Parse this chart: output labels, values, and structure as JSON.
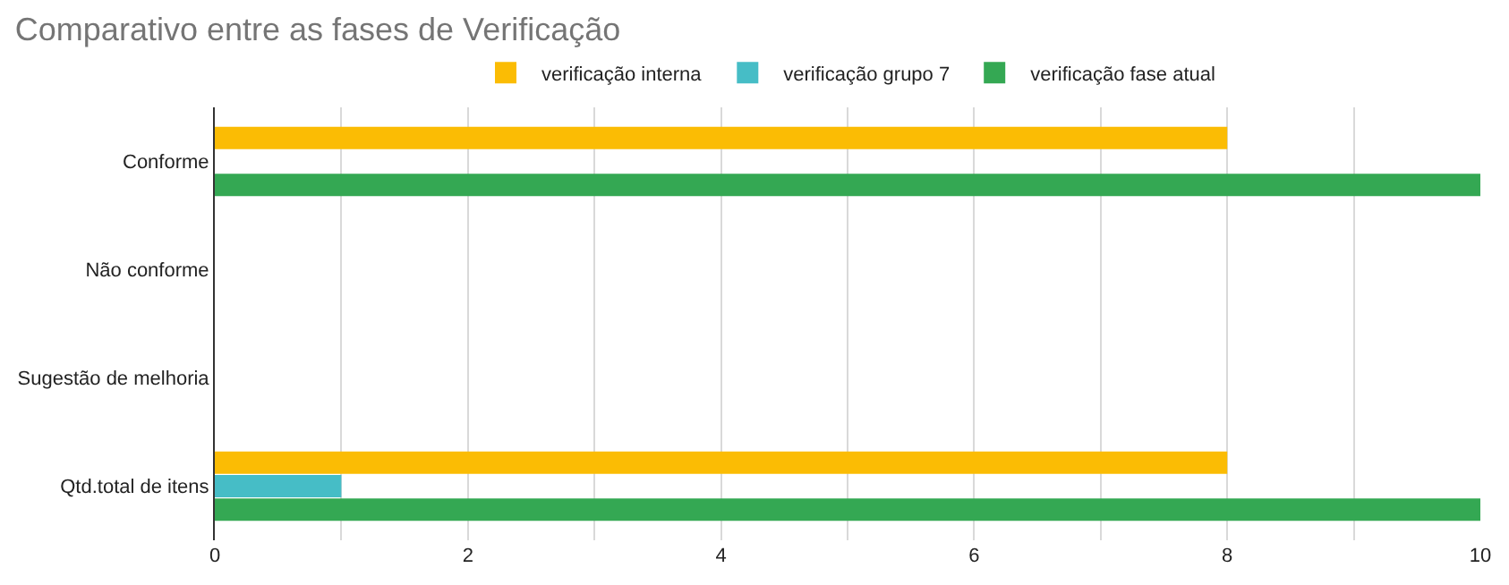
{
  "chart_data": {
    "type": "bar",
    "orientation": "horizontal",
    "title": "Comparativo entre as fases de Verificação",
    "categories": [
      "Conforme",
      "Não conforme",
      "Sugestão de melhoria",
      "Qtd.total de itens"
    ],
    "series": [
      {
        "name": "verificação interna",
        "color": "#fbbc04",
        "values": [
          8,
          0,
          0,
          8
        ]
      },
      {
        "name": "verificação grupo 7",
        "color": "#46bdc6",
        "values": [
          0,
          0,
          0,
          1
        ]
      },
      {
        "name": "verificação fase atual",
        "color": "#34a853",
        "values": [
          10,
          0,
          0,
          10
        ]
      }
    ],
    "xlim": [
      0,
      10
    ],
    "xticks": [
      0,
      {
        "value": 1,
        "label": null
      },
      2,
      {
        "value": 3,
        "label": null
      },
      4,
      {
        "value": 5,
        "label": null
      },
      6,
      {
        "value": 7,
        "label": null
      },
      8,
      {
        "value": 9,
        "label": null
      },
      10
    ],
    "grid": "x",
    "legend": "top"
  }
}
